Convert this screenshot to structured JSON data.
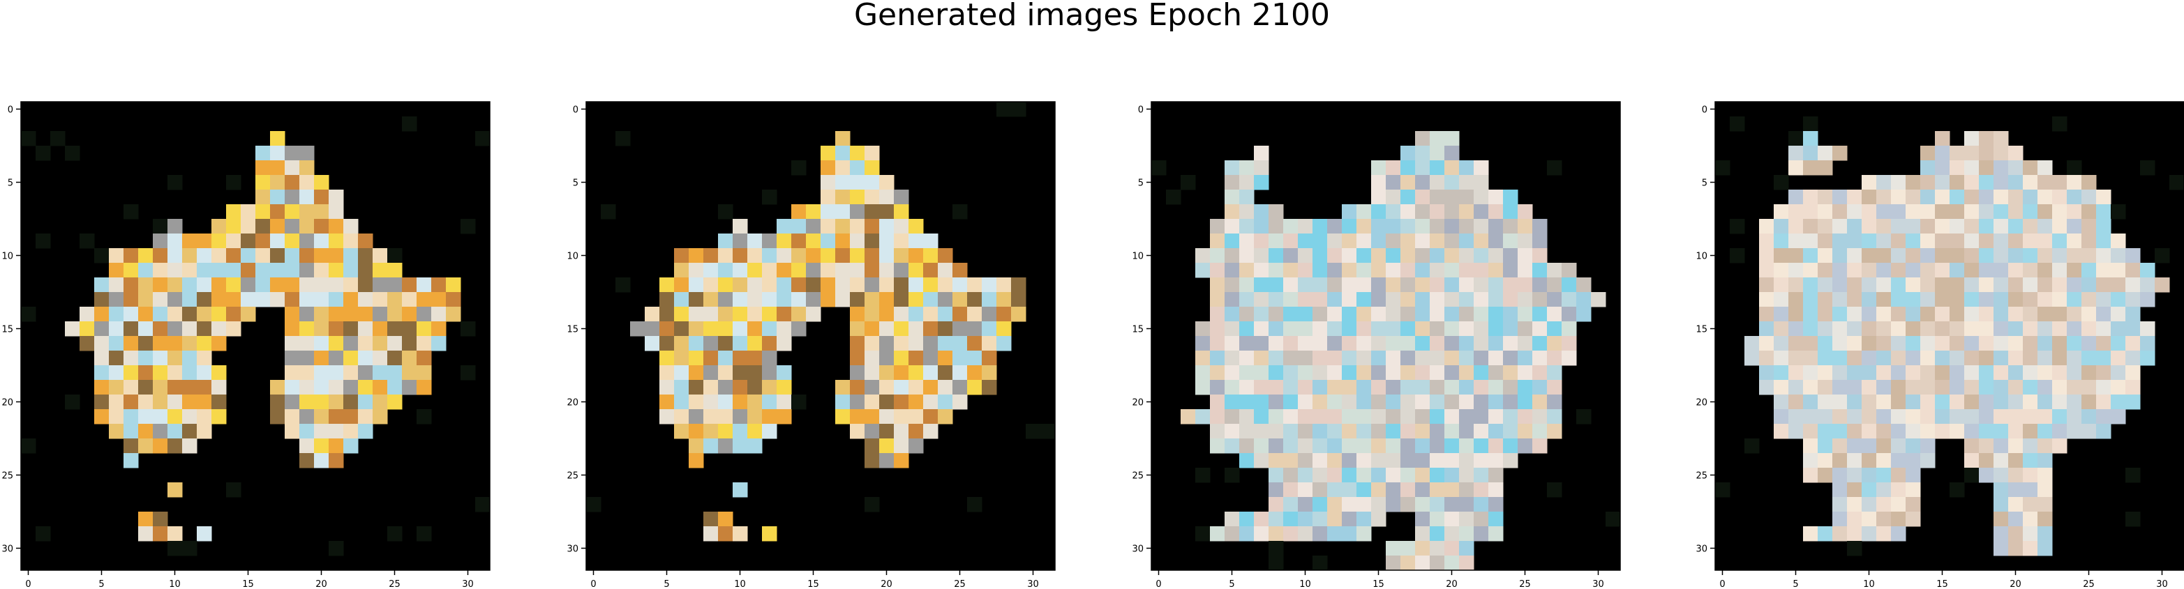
{
  "figure": {
    "title": "Generated images Epoch 2100",
    "background": "#ffffff",
    "panel_background": "#000000",
    "image_grid_size": 32,
    "axis_ticks": [
      "0",
      "5",
      "10",
      "15",
      "20",
      "25",
      "30"
    ],
    "tick_values": [
      0,
      5,
      10,
      15,
      20,
      25,
      30
    ],
    "panels": [
      {
        "name": "generated-image-1",
        "palette": [
          "#f3dcb8",
          "#e9c36d",
          "#f0a83a",
          "#c8823a",
          "#a9d8e6",
          "#d5e8ef",
          "#9b9b9b",
          "#8a6b3d",
          "#e8e1d4",
          "#f7d84a"
        ],
        "mask": [
          "................................",
          "................................",
          ".................X..............",
          "................XXXX............",
          "................XXXX............",
          "................XXXXX...........",
          "................XXXXXX..........",
          "..............XXXXXXXX..........",
          "..........X..XXXXXXXXXX.........",
          ".........XXXXXXXXXXXXXXX........",
          "......XXXXXXXXXXXXXXXXXXX.......",
          "......XXXXXXXXXXXXXXXXXXXX......",
          ".....XXXXXXXXXXXXXXXXXXXXXXXXX..",
          ".....XXXXXXXXXXXXXXXXXXXXXXXXX..",
          "....XXXXXXXXXXXX..XXXXXXXXXXXX..",
          "...XXXXXXXXXXXX...XXXXXXXXXXX...",
          "....XXXXXXXXXX....XXXXXXXXXXX...",
          ".....XXXXXXXX.....XXXXXXXXXX....",
          ".....XXXXXXXXX....XXXXXXXXXX....",
          ".....XXXXXXXXX...XXXXXXXXXXX....",
          ".....XXXXXXXXX...XXXXXXXXX......",
          ".....XXXXXXXXX...XXXXXXXX.......",
          "......XXXXXXX.....XXXXXX........",
          ".......XXXXX.......XXXX.........",
          ".......X...........XXX..........",
          "................................",
          "..........X.....................",
          "................................",
          "........XX......................",
          "........XXX.X...................",
          "................................",
          "................................"
        ]
      },
      {
        "name": "generated-image-2",
        "palette": [
          "#f3dcb8",
          "#e9c36d",
          "#f0a83a",
          "#c8823a",
          "#a9d8e6",
          "#d5e8ef",
          "#9b9b9b",
          "#8a6b3d",
          "#e8e1d4",
          "#f7d84a"
        ],
        "mask": [
          "................................",
          "................................",
          ".................X..............",
          "................XXXX............",
          "................XXXX............",
          "................XXXXX...........",
          "................XXXXXX..........",
          "..............XXXXXXXX..........",
          "..........X..XXXXXXXXXX.........",
          ".........XXXXXXXXXXXXXXX........",
          "......XXXXXXXXXXXXXXXXXXX.......",
          "......XXXXXXXXXXXXXXXXXXXX......",
          ".....XXXXXXXXXXXXXXXXXXXXXXXXX..",
          ".....XXXXXXXXXXXXXXXXXXXXXXXXX..",
          "....XXXXXXXXXXXX..XXXXXXXXXXXX..",
          "...XXXXXXXXXXXX...XXXXXXXXXXX...",
          "....XXXXXXXXXX....XXXXXXXXXXX...",
          ".....XXXXXXXX.....XXXXXXXXXX....",
          ".....XXXXXXXXX....XXXXXXXXXX....",
          ".....XXXXXXXXX...XXXXXXXXXXX....",
          ".....XXXXXXXXX...XXXXXXXXX......",
          ".....XXXXXXXXX...XXXXXXXX.......",
          "......XXXXXXX.....XXXXXX........",
          ".......XXXXX.......XXXX.........",
          ".......X...........XXX..........",
          "................................",
          "..........X.....................",
          "................................",
          "........XX......................",
          "........XXX.X...................",
          "................................",
          "................................"
        ]
      },
      {
        "name": "generated-image-3",
        "palette": [
          "#dcd8d0",
          "#b8d8e0",
          "#9fcfe2",
          "#e6cfc5",
          "#c8c0b8",
          "#d2e0d8",
          "#f0e6df",
          "#a9b0c0",
          "#7fd2e8",
          "#e8d0b0"
        ],
        "mask": [
          "................................",
          "................................",
          "..................XXX...........",
          ".......X.........XXXX...........",
          ".....XXX.......XXXXXXXX.........",
          ".....XXX.......XXXXXXXX.........",
          ".....XX........XXXXXXXXXX.......",
          ".....XXXX....XXXXXXXXXXXXX......",
          "....XXXXXXXXXXXXXXXXXXXXXXX.....",
          "....XXXXXXXXXXXXXXXXXXXXXXX.....",
          "...XXXXXXXXXXXXXXXXXXXXXXXX.....",
          "...XXXXXXXXXXXXXXXXXXXXXXXXXX...",
          "....XXXXXXXXXXXXXXXXXXXXXXXXXX..",
          "....XXXXXXXXXXXXXXXXXXXXXXXXXXX.",
          "....XXXXXXXXXXXXXXXXXXXXXXXXXX..",
          "...XXXXXXXXXXXXXXXXXXXXXXXXXX...",
          "...XXXXXXXXXXXXXXXXXXXXXXXXXX...",
          "...XXXXXXXXXXXXXXXXXXXXXXXXXX...",
          "...XXXXXXXXXXXXXXXXXXXXXXXXX....",
          "...XXXXXXXXXXXXXXXXXXXXXXXXX....",
          "....XXXXXXXXXXXXXXXXXXXXXXXX....",
          "..XXXXXXXXXXXXXXXXXXXXXXXXXX....",
          "....XXXXXXXXXXXXXXXXXXXXXXXX....",
          "....XXXXXXXXXXXXXXXXXXXXXXX.....",
          "......XXXXXXXXXXXXXXXXXXX.......",
          "........XXXXXXXXXXXXXXXX........",
          "........XXXXXXXXXXXXXXXX........",
          "........XXXXXXXXXXXXXXXX........",
          ".....XXXXXXXXXXX..XXXXXX........",
          "....XXXXXXXXXXX...XXXXXX........",
          "................XXXXXX..........",
          "................XXXXXX.........."
        ]
      },
      {
        "name": "generated-image-4",
        "palette": [
          "#e2d0c0",
          "#c9d6dc",
          "#a9d0e0",
          "#f0ddcf",
          "#d8c2b0",
          "#e8e6e0",
          "#bcc8d8",
          "#cfb8a0",
          "#f5e8d8",
          "#9fd8e8"
        ],
        "mask": [
          "................................",
          "................................",
          "......X........X.XXX............",
          ".....XXXX.....XXXXXXX...........",
          ".....XXX......XXXXXXXXX.........",
          "..........XXXXXXXXXXXXXXXX......",
          ".....XXXXXXXXXXXXXXXXXXXXXX.....",
          "....XXXXXXXXXXXXXXXXXXXXXXX.....",
          "...XXXXXXXXXXXXXXXXXXXXXXXX.....",
          "...XXXXXXXXXXXXXXXXXXXXXXXXX....",
          "...XXXXXXXXXXXXXXXXXXXXXXXXXX...",
          "...XXXXXXXXXXXXXXXXXXXXXXXXXXX..",
          "...XXXXXXXXXXXXXXXXXXXXXXXXXXXX.",
          "...XXXXXXXXXXXXXXXXXXXXXXXXXXX..",
          "...XXXXXXXXXXXXXXXXXXXXXXXXXX...",
          "...XXXXXXXXXXXXXXXXXXXXXXXXXXX..",
          "..XXXXXXXXXXXXXXXXXXXXXXXXXXXX..",
          "..XXXXXXXXXXXXXXXXXXXXXXXXXXXX..",
          "...XXXXXXXXXXXXXXXXXXXXXXXXXX...",
          "...XXXXXXXXXXXXXXXXXXXXXXXXXX...",
          "....XXXXXXXXXXXXXXXXXXXXXXXXX...",
          "....XXXXXXXXXXXXXXXXXXXXXXXX....",
          "....XXXXXXXXXXXXXXXXXXXXXXX.....",
          "......XXXXXXXXX..XXXXXXX........",
          "......XXXXXXXXX..XXXXXX.........",
          "......XXXXXXXX....XXXXX.........",
          "........XXXXXX.....XXXX.........",
          "........XXXXXX.....XXXX.........",
          "........XXXXXX.....XXXX.........",
          "......XXXXXXX......XXXX.........",
          "...................XXXX.........",
          "................................"
        ]
      }
    ]
  }
}
